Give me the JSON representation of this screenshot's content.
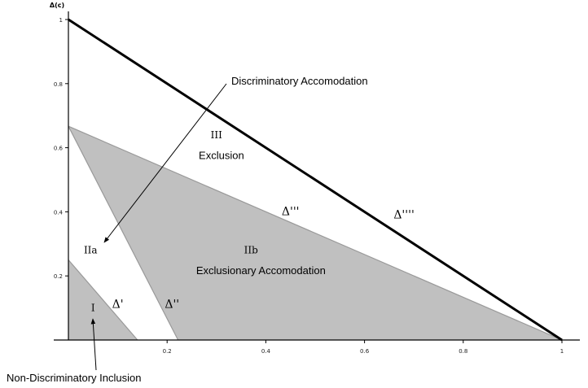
{
  "chart_data": {
    "type": "area",
    "title": "",
    "xlabel": "",
    "ylabel": "Δ(c)",
    "xlim": [
      0,
      1
    ],
    "ylim": [
      0,
      1
    ],
    "x_ticks": [
      "0.2",
      "0.4",
      "0.6",
      "0.8",
      "1"
    ],
    "y_ticks": [
      "0.2",
      "0.4",
      "0.6",
      "0.8",
      "1"
    ],
    "regions": [
      {
        "id": "I",
        "fill": "#c0c0c0",
        "points": [
          [
            0,
            0.25
          ],
          [
            0,
            0
          ],
          [
            0.14,
            0
          ]
        ]
      },
      {
        "id": "IIb",
        "fill": "#c0c0c0",
        "points": [
          [
            0,
            0.667
          ],
          [
            0.2222,
            0
          ],
          [
            1,
            0
          ]
        ]
      }
    ],
    "lines": [
      {
        "name": "Δ'",
        "points": [
          [
            0,
            0.25
          ],
          [
            0.14,
            0
          ]
        ],
        "color": "#999999"
      },
      {
        "name": "Δ''",
        "points": [
          [
            0,
            0.667
          ],
          [
            0.2222,
            0
          ]
        ],
        "color": "#999999"
      },
      {
        "name": "Δ'''",
        "points": [
          [
            0,
            0.667
          ],
          [
            1,
            0
          ]
        ],
        "color": "#999999"
      },
      {
        "name": "Δ''''",
        "points": [
          [
            0,
            1
          ],
          [
            1,
            0
          ]
        ],
        "color": "#000000"
      }
    ],
    "region_labels": [
      {
        "numeral": "I",
        "x": 0.05,
        "y": 0.09
      },
      {
        "numeral": "IIa",
        "x": 0.045,
        "y": 0.27
      },
      {
        "numeral": "IIb",
        "x": 0.37,
        "y": 0.27,
        "text": "Exclusionary Accomodation",
        "tx": 0.39,
        "ty": 0.205
      },
      {
        "numeral": "III",
        "x": 0.3,
        "y": 0.63,
        "text": "Exclusion",
        "tx": 0.31,
        "ty": 0.565
      }
    ],
    "line_labels": [
      {
        "text": "Δ'",
        "x": 0.1,
        "y": 0.1
      },
      {
        "text": "Δ''",
        "x": 0.21,
        "y": 0.1
      },
      {
        "text": "Δ'''",
        "x": 0.45,
        "y": 0.39
      },
      {
        "text": "Δ''''",
        "x": 0.68,
        "y": 0.38
      }
    ],
    "annotations": [
      {
        "text": "Discriminatory Accomodation",
        "arrow_to": [
          0.1,
          0.31
        ]
      },
      {
        "text": "Non-Discriminatory Inclusion",
        "arrow_to": [
          0.05,
          0.06
        ]
      }
    ]
  }
}
